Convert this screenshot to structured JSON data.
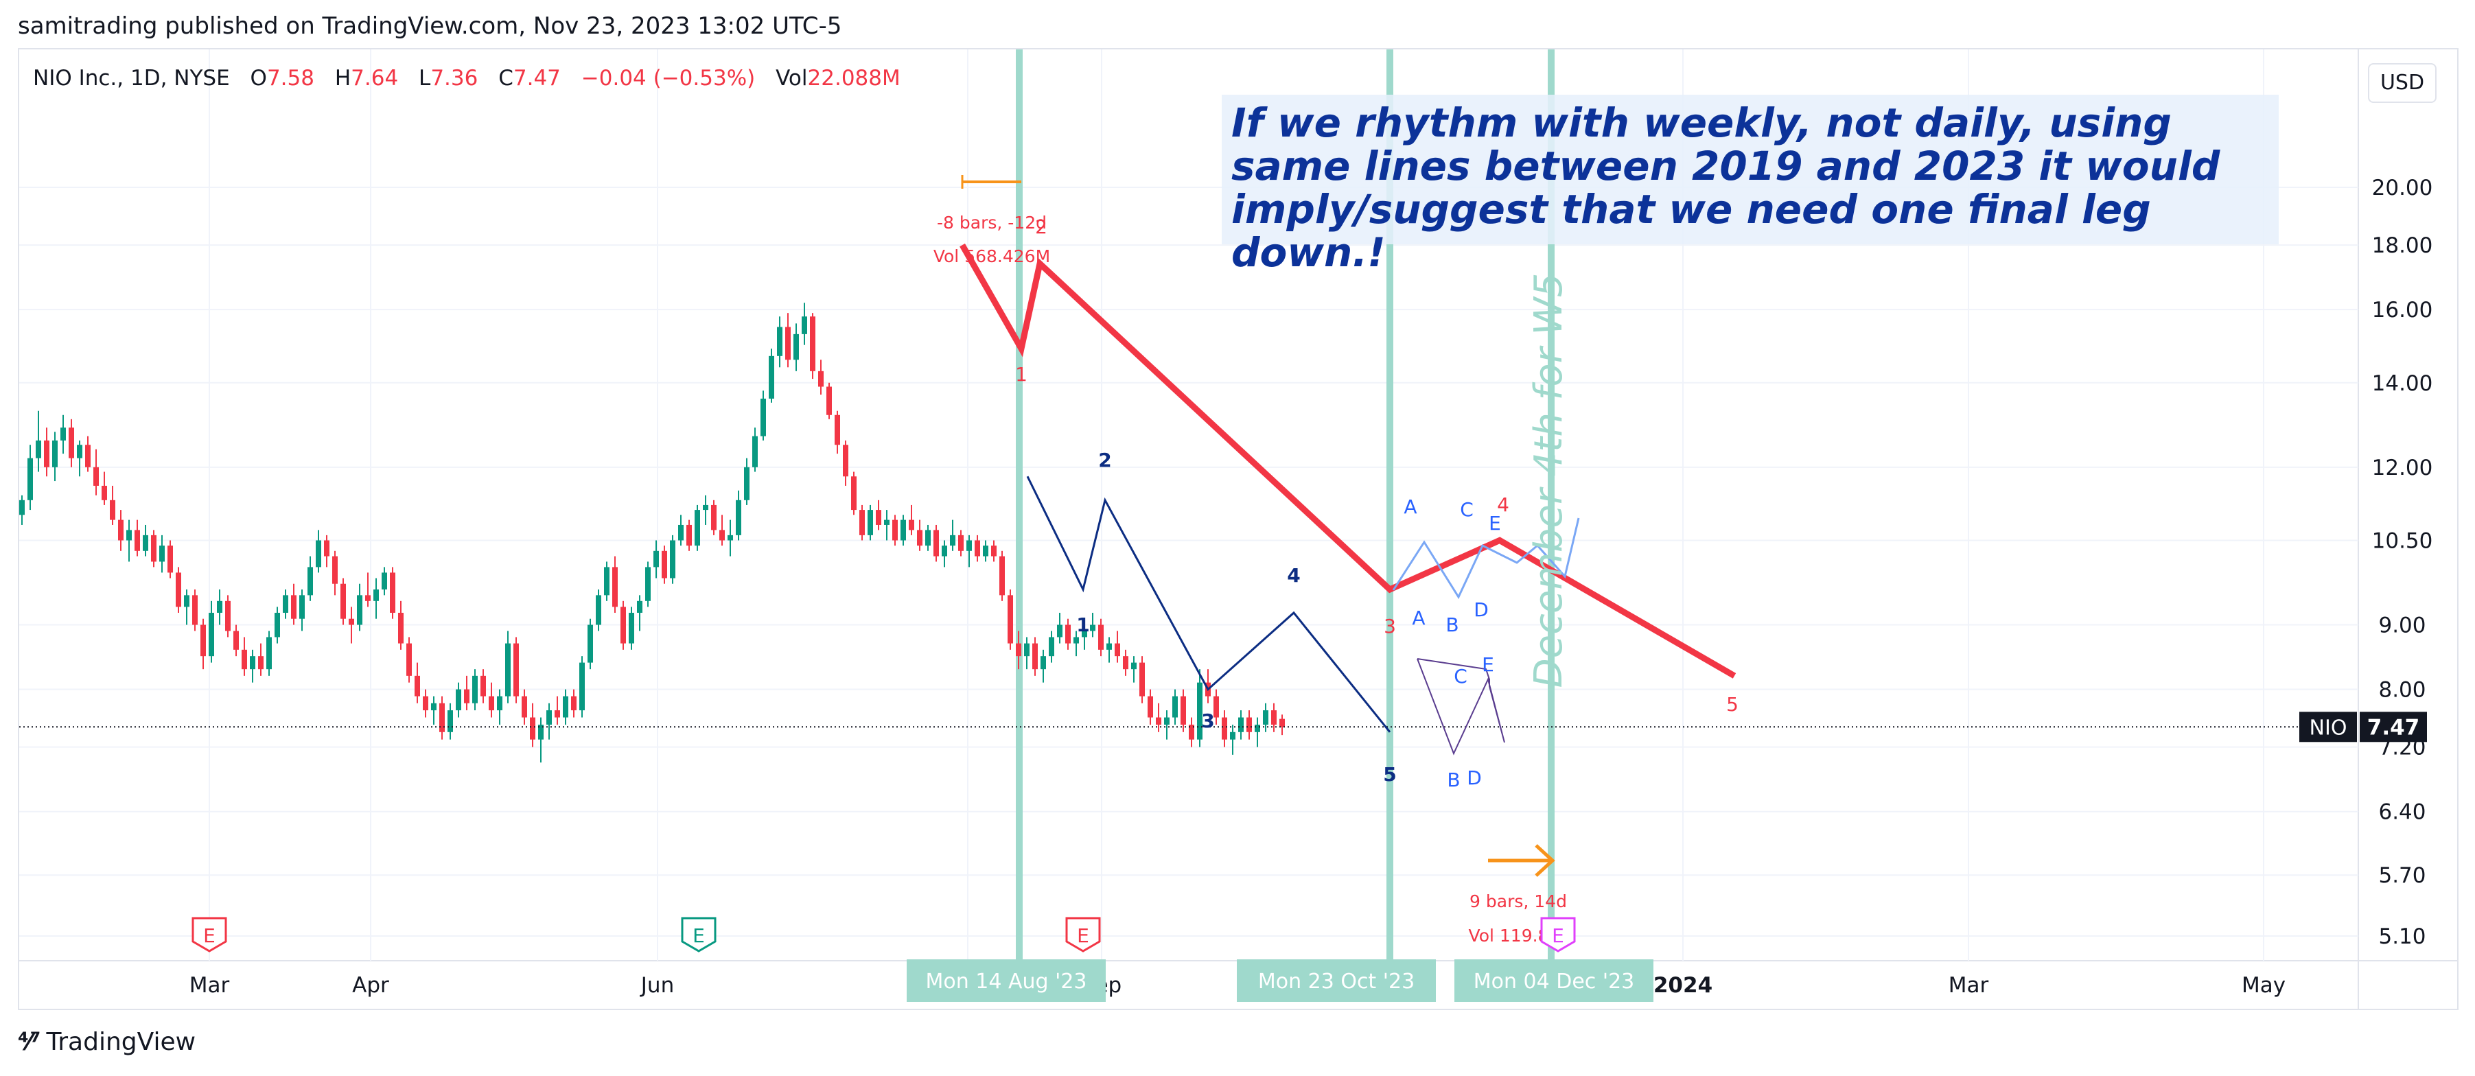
{
  "header": {
    "published": "samitrading published on TradingView.com, Nov 23, 2023 13:02 UTC-5"
  },
  "legend": {
    "symbol": "NIO Inc., 1D, NYSE",
    "open_label": "O",
    "open": "7.58",
    "high_label": "H",
    "high": "7.64",
    "low_label": "L",
    "low": "7.36",
    "close_label": "C",
    "close": "7.47",
    "change": "−0.04 (−0.53%)",
    "vol_label": "Vol",
    "vol": "22.088M"
  },
  "currency": "USD",
  "note": "If we rhythm with weekly, not daily, using same lines between 2019 and 2023 it would imply/suggest that we need one final leg down.!",
  "footer": {
    "brand": "TradingView"
  },
  "colors": {
    "up": "#089981",
    "down": "#f23645",
    "wave_red": "#f23645",
    "wave_navy": "#0c2d83",
    "abc_blue": "#2962ff",
    "vline": "#9fd9cc",
    "arrow": "#f7931a"
  },
  "chart_data": {
    "type": "candlestick",
    "symbol": "NIO",
    "ylim": [
      4.9,
      22.0
    ],
    "y_scale": "log",
    "y_ticks": [
      "20.00",
      "18.00",
      "16.00",
      "14.00",
      "12.00",
      "10.50",
      "9.00",
      "8.00",
      "7.20",
      "6.40",
      "5.70",
      "5.10"
    ],
    "x_ticks": [
      "Mar",
      "Apr",
      "Jun",
      "Aug",
      "Sep",
      "2024",
      "Mar",
      "May"
    ],
    "last_price": {
      "label": "NIO",
      "value": "7.47"
    },
    "candles": [
      {
        "c": [
          11.0,
          11.4,
          10.8,
          11.3
        ]
      },
      {
        "c": [
          11.3,
          12.5,
          11.1,
          12.2
        ]
      },
      {
        "c": [
          12.2,
          13.3,
          11.9,
          12.6
        ]
      },
      {
        "c": [
          12.6,
          12.9,
          11.8,
          12.0
        ]
      },
      {
        "c": [
          12.0,
          12.8,
          11.7,
          12.6
        ]
      },
      {
        "c": [
          12.6,
          13.2,
          12.3,
          12.9
        ]
      },
      {
        "c": [
          12.9,
          13.1,
          12.0,
          12.2
        ]
      },
      {
        "c": [
          12.2,
          12.6,
          11.8,
          12.5
        ]
      },
      {
        "c": [
          12.5,
          12.7,
          11.9,
          12.0
        ]
      },
      {
        "c": [
          12.0,
          12.4,
          11.4,
          11.6
        ]
      },
      {
        "c": [
          11.6,
          11.9,
          11.2,
          11.3
        ]
      },
      {
        "c": [
          11.3,
          11.6,
          10.8,
          10.9
        ]
      },
      {
        "c": [
          10.9,
          11.1,
          10.3,
          10.5
        ]
      },
      {
        "c": [
          10.5,
          10.9,
          10.1,
          10.7
        ]
      },
      {
        "c": [
          10.7,
          10.9,
          10.2,
          10.3
        ]
      },
      {
        "c": [
          10.3,
          10.8,
          10.2,
          10.6
        ]
      },
      {
        "c": [
          10.6,
          10.7,
          10.0,
          10.1
        ]
      },
      {
        "c": [
          10.1,
          10.6,
          9.9,
          10.4
        ]
      },
      {
        "c": [
          10.4,
          10.5,
          9.8,
          9.9
        ]
      },
      {
        "c": [
          9.9,
          10.0,
          9.2,
          9.3
        ]
      },
      {
        "c": [
          9.3,
          9.6,
          9.0,
          9.5
        ]
      },
      {
        "c": [
          9.5,
          9.6,
          8.9,
          9.0
        ]
      },
      {
        "c": [
          9.0,
          9.1,
          8.3,
          8.5
        ]
      },
      {
        "c": [
          8.5,
          9.4,
          8.4,
          9.2
        ]
      },
      {
        "c": [
          9.2,
          9.6,
          9.0,
          9.4
        ]
      },
      {
        "c": [
          9.4,
          9.5,
          8.8,
          8.9
        ]
      },
      {
        "c": [
          8.9,
          9.0,
          8.5,
          8.6
        ]
      },
      {
        "c": [
          8.6,
          8.8,
          8.2,
          8.3
        ]
      },
      {
        "c": [
          8.3,
          8.6,
          8.1,
          8.5
        ]
      },
      {
        "c": [
          8.5,
          8.7,
          8.2,
          8.3
        ]
      },
      {
        "c": [
          8.3,
          8.9,
          8.2,
          8.8
        ]
      },
      {
        "c": [
          8.8,
          9.3,
          8.7,
          9.2
        ]
      },
      {
        "c": [
          9.2,
          9.6,
          9.1,
          9.5
        ]
      },
      {
        "c": [
          9.5,
          9.7,
          9.0,
          9.1
        ]
      },
      {
        "c": [
          9.1,
          9.6,
          8.9,
          9.5
        ]
      },
      {
        "c": [
          9.5,
          10.2,
          9.4,
          10.0
        ]
      },
      {
        "c": [
          10.0,
          10.7,
          9.9,
          10.5
        ]
      },
      {
        "c": [
          10.5,
          10.6,
          10.0,
          10.2
        ]
      },
      {
        "c": [
          10.2,
          10.3,
          9.5,
          9.7
        ]
      },
      {
        "c": [
          9.7,
          9.8,
          9.0,
          9.1
        ]
      },
      {
        "c": [
          9.1,
          9.3,
          8.7,
          9.0
        ]
      },
      {
        "c": [
          9.0,
          9.7,
          8.9,
          9.5
        ]
      },
      {
        "c": [
          9.5,
          9.9,
          9.3,
          9.4
        ]
      },
      {
        "c": [
          9.4,
          9.8,
          9.1,
          9.6
        ]
      },
      {
        "c": [
          9.6,
          10.0,
          9.5,
          9.9
        ]
      },
      {
        "c": [
          9.9,
          10.0,
          9.1,
          9.2
        ]
      },
      {
        "c": [
          9.2,
          9.4,
          8.6,
          8.7
        ]
      },
      {
        "c": [
          8.7,
          8.8,
          8.1,
          8.2
        ]
      },
      {
        "c": [
          8.2,
          8.4,
          7.8,
          7.9
        ]
      },
      {
        "c": [
          7.9,
          8.0,
          7.6,
          7.7
        ]
      },
      {
        "c": [
          7.7,
          7.9,
          7.5,
          7.8
        ]
      },
      {
        "c": [
          7.8,
          7.9,
          7.3,
          7.4
        ]
      },
      {
        "c": [
          7.4,
          7.8,
          7.3,
          7.7
        ]
      },
      {
        "c": [
          7.7,
          8.1,
          7.6,
          8.0
        ]
      },
      {
        "c": [
          8.0,
          8.2,
          7.7,
          7.8
        ]
      },
      {
        "c": [
          7.8,
          8.3,
          7.7,
          8.2
        ]
      },
      {
        "c": [
          8.2,
          8.3,
          7.8,
          7.9
        ]
      },
      {
        "c": [
          7.9,
          8.1,
          7.6,
          7.7
        ]
      },
      {
        "c": [
          7.7,
          8.0,
          7.5,
          7.9
        ]
      },
      {
        "c": [
          7.9,
          8.9,
          7.8,
          8.7
        ]
      },
      {
        "c": [
          8.7,
          8.8,
          7.8,
          7.9
        ]
      },
      {
        "c": [
          7.9,
          8.0,
          7.5,
          7.6
        ]
      },
      {
        "c": [
          7.6,
          7.8,
          7.2,
          7.3
        ]
      },
      {
        "c": [
          7.3,
          7.6,
          7.0,
          7.5
        ]
      },
      {
        "c": [
          7.5,
          7.8,
          7.3,
          7.7
        ]
      },
      {
        "c": [
          7.7,
          7.9,
          7.5,
          7.6
        ]
      },
      {
        "c": [
          7.6,
          8.0,
          7.5,
          7.9
        ]
      },
      {
        "c": [
          7.9,
          8.0,
          7.6,
          7.7
        ]
      },
      {
        "c": [
          7.7,
          8.5,
          7.6,
          8.4
        ]
      },
      {
        "c": [
          8.4,
          9.1,
          8.3,
          9.0
        ]
      },
      {
        "c": [
          9.0,
          9.6,
          8.9,
          9.5
        ]
      },
      {
        "c": [
          9.5,
          10.1,
          9.4,
          10.0
        ]
      },
      {
        "c": [
          10.0,
          10.2,
          9.2,
          9.3
        ]
      },
      {
        "c": [
          9.3,
          9.4,
          8.6,
          8.7
        ]
      },
      {
        "c": [
          8.7,
          9.3,
          8.6,
          9.2
        ]
      },
      {
        "c": [
          9.2,
          9.5,
          8.9,
          9.4
        ]
      },
      {
        "c": [
          9.4,
          10.1,
          9.3,
          10.0
        ]
      },
      {
        "c": [
          10.0,
          10.5,
          9.8,
          10.3
        ]
      },
      {
        "c": [
          10.3,
          10.4,
          9.7,
          9.8
        ]
      },
      {
        "c": [
          9.8,
          10.6,
          9.7,
          10.5
        ]
      },
      {
        "c": [
          10.5,
          11.0,
          10.4,
          10.8
        ]
      },
      {
        "c": [
          10.8,
          10.9,
          10.3,
          10.4
        ]
      },
      {
        "c": [
          10.4,
          11.2,
          10.3,
          11.1
        ]
      },
      {
        "c": [
          11.1,
          11.4,
          10.8,
          11.2
        ]
      },
      {
        "c": [
          11.2,
          11.3,
          10.6,
          10.7
        ]
      },
      {
        "c": [
          10.7,
          11.0,
          10.4,
          10.5
        ]
      },
      {
        "c": [
          10.5,
          10.9,
          10.2,
          10.6
        ]
      },
      {
        "c": [
          10.6,
          11.5,
          10.5,
          11.3
        ]
      },
      {
        "c": [
          11.3,
          12.2,
          11.2,
          12.0
        ]
      },
      {
        "c": [
          12.0,
          12.9,
          11.9,
          12.7
        ]
      },
      {
        "c": [
          12.7,
          13.8,
          12.6,
          13.6
        ]
      },
      {
        "c": [
          13.6,
          14.9,
          13.5,
          14.7
        ]
      },
      {
        "c": [
          14.7,
          15.8,
          14.4,
          15.5
        ]
      },
      {
        "c": [
          15.5,
          15.9,
          14.4,
          14.6
        ]
      },
      {
        "c": [
          14.6,
          15.6,
          14.3,
          15.3
        ]
      },
      {
        "c": [
          15.3,
          16.2,
          15.0,
          15.8
        ]
      },
      {
        "c": [
          15.8,
          15.9,
          14.1,
          14.3
        ]
      },
      {
        "c": [
          14.3,
          14.6,
          13.7,
          13.9
        ]
      },
      {
        "c": [
          13.9,
          14.0,
          13.1,
          13.2
        ]
      },
      {
        "c": [
          13.2,
          13.3,
          12.3,
          12.5
        ]
      },
      {
        "c": [
          12.5,
          12.6,
          11.6,
          11.8
        ]
      },
      {
        "c": [
          11.8,
          11.9,
          11.0,
          11.1
        ]
      },
      {
        "c": [
          11.1,
          11.2,
          10.5,
          10.6
        ]
      },
      {
        "c": [
          10.6,
          11.2,
          10.5,
          11.1
        ]
      },
      {
        "c": [
          11.1,
          11.3,
          10.7,
          10.8
        ]
      },
      {
        "c": [
          10.8,
          11.1,
          10.5,
          10.9
        ]
      },
      {
        "c": [
          10.9,
          11.0,
          10.4,
          10.5
        ]
      },
      {
        "c": [
          10.5,
          11.0,
          10.4,
          10.9
        ]
      },
      {
        "c": [
          10.9,
          11.2,
          10.6,
          10.7
        ]
      },
      {
        "c": [
          10.7,
          10.9,
          10.3,
          10.4
        ]
      },
      {
        "c": [
          10.4,
          10.8,
          10.3,
          10.7
        ]
      },
      {
        "c": [
          10.7,
          10.8,
          10.1,
          10.2
        ]
      },
      {
        "c": [
          10.2,
          10.5,
          10.0,
          10.4
        ]
      },
      {
        "c": [
          10.4,
          10.9,
          10.3,
          10.6
        ]
      },
      {
        "c": [
          10.6,
          10.7,
          10.2,
          10.3
        ]
      },
      {
        "c": [
          10.3,
          10.6,
          10.0,
          10.5
        ]
      },
      {
        "c": [
          10.5,
          10.6,
          10.1,
          10.2
        ]
      },
      {
        "c": [
          10.2,
          10.5,
          10.1,
          10.4
        ]
      },
      {
        "c": [
          10.4,
          10.5,
          10.1,
          10.2
        ]
      },
      {
        "c": [
          10.2,
          10.3,
          9.4,
          9.5
        ]
      },
      {
        "c": [
          9.5,
          9.6,
          8.6,
          8.7
        ]
      },
      {
        "c": [
          8.7,
          8.9,
          8.3,
          8.5
        ]
      },
      {
        "c": [
          8.5,
          8.8,
          8.3,
          8.7
        ]
      },
      {
        "c": [
          8.7,
          8.8,
          8.2,
          8.3
        ]
      },
      {
        "c": [
          8.3,
          8.6,
          8.1,
          8.5
        ]
      },
      {
        "c": [
          8.5,
          8.9,
          8.4,
          8.8
        ]
      },
      {
        "c": [
          8.8,
          9.2,
          8.7,
          9.0
        ]
      },
      {
        "c": [
          9.0,
          9.1,
          8.6,
          8.7
        ]
      },
      {
        "c": [
          8.7,
          8.9,
          8.5,
          8.8
        ]
      },
      {
        "c": [
          8.8,
          9.1,
          8.6,
          8.9
        ]
      },
      {
        "c": [
          8.9,
          9.2,
          8.8,
          9.0
        ]
      },
      {
        "c": [
          9.0,
          9.1,
          8.5,
          8.6
        ]
      },
      {
        "c": [
          8.6,
          8.8,
          8.4,
          8.7
        ]
      },
      {
        "c": [
          8.7,
          8.9,
          8.4,
          8.5
        ]
      },
      {
        "c": [
          8.5,
          8.6,
          8.2,
          8.3
        ]
      },
      {
        "c": [
          8.3,
          8.5,
          8.1,
          8.4
        ]
      },
      {
        "c": [
          8.4,
          8.5,
          7.8,
          7.9
        ]
      },
      {
        "c": [
          7.9,
          8.0,
          7.5,
          7.6
        ]
      },
      {
        "c": [
          7.6,
          7.8,
          7.4,
          7.5
        ]
      },
      {
        "c": [
          7.5,
          7.7,
          7.3,
          7.6
        ]
      },
      {
        "c": [
          7.6,
          8.0,
          7.5,
          7.9
        ]
      },
      {
        "c": [
          7.9,
          8.0,
          7.4,
          7.5
        ]
      },
      {
        "c": [
          7.5,
          7.6,
          7.2,
          7.3
        ]
      },
      {
        "c": [
          7.3,
          8.3,
          7.2,
          8.1
        ]
      },
      {
        "c": [
          8.1,
          8.3,
          7.8,
          7.9
        ]
      },
      {
        "c": [
          7.9,
          8.0,
          7.5,
          7.6
        ]
      },
      {
        "c": [
          7.6,
          7.7,
          7.2,
          7.3
        ]
      },
      {
        "c": [
          7.3,
          7.5,
          7.1,
          7.4
        ]
      },
      {
        "c": [
          7.4,
          7.7,
          7.3,
          7.6
        ]
      },
      {
        "c": [
          7.6,
          7.7,
          7.3,
          7.4
        ]
      },
      {
        "c": [
          7.4,
          7.6,
          7.2,
          7.5
        ]
      },
      {
        "c": [
          7.5,
          7.8,
          7.4,
          7.7
        ]
      },
      {
        "c": [
          7.7,
          7.8,
          7.4,
          7.5
        ]
      },
      {
        "c": [
          7.58,
          7.64,
          7.36,
          7.47
        ]
      }
    ],
    "waves_red": {
      "points": [
        [
          18.0,
          "start"
        ],
        [
          14.9,
          "1"
        ],
        [
          17.4,
          "2"
        ],
        [
          9.6,
          "3"
        ],
        [
          10.5,
          "4"
        ],
        [
          8.2,
          "5"
        ]
      ]
    },
    "wave_labels_red": [
      "1",
      "2",
      "3",
      "4",
      "5"
    ],
    "wave_labels_navy": [
      "1",
      "2",
      "3",
      "4",
      "5"
    ],
    "abc_labels_top": [
      "A",
      "C",
      "E"
    ],
    "abc_labels_mid": [
      "A",
      "B",
      "D"
    ],
    "abc_labels_low": [
      "C",
      "E",
      "B",
      "D"
    ],
    "measure_top": {
      "bars": "-8 bars, -12d",
      "vol": "Vol 568.426M"
    },
    "measure_bottom": {
      "bars": "9 bars, 14d",
      "vol": "Vol 119.8"
    },
    "vertical_note": "December 4th for W5",
    "date_labels": [
      "Mon 14 Aug '23",
      "Mon 23 Oct '23",
      "Mon 04 Dec '23"
    ],
    "earnings_marker": "E"
  }
}
